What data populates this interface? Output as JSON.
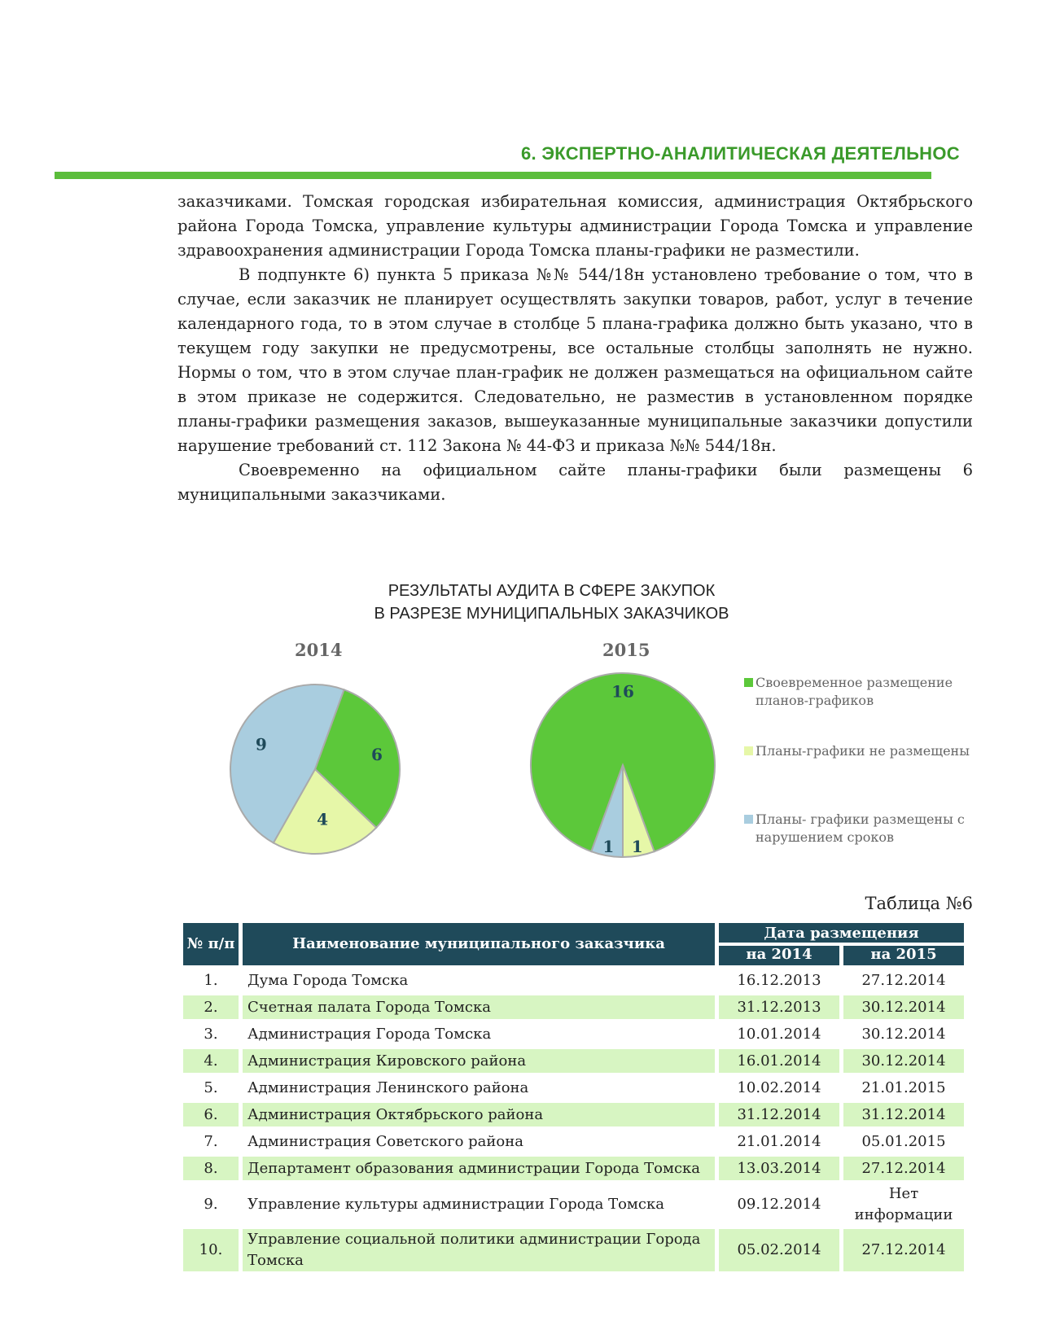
{
  "header": {
    "section_title": "6. ЭКСПЕРТНО-АНАЛИТИЧЕСКАЯ ДЕЯТЕЛЬНОС"
  },
  "body": {
    "p1": "заказчиками. Томская городская избирательная комиссия, администрация Октябрьского района Города Томска, управление культуры администрации Города Томска и управление здравоохранения администрации Города Томска планы-графики не разместили.",
    "p2": "В подпункте 6) пункта 5 приказа №№ 544/18н установлено требование о том, что в случае, если заказчик не планирует осуществлять закупки товаров, работ, услуг в течение календарного года, то в этом случае в столбце 5 плана-графика должно быть указано, что в текущем году закупки не предусмотрены, все остальные столбцы заполнять не нужно. Нормы о том, что в этом случае план-график не должен размещаться на официальном сайте в этом приказе не содержится. Следовательно, не разместив в установленном порядке планы-графики размещения заказов, вышеуказанные муниципальные заказчики допустили нарушение требований ст. 112 Закона № 44-ФЗ и приказа №№ 544/18н.",
    "p3": "Своевременно на официальном сайте планы-графики были размещены 6 муниципальными заказчиками."
  },
  "chart_data": {
    "type": "pie",
    "title_line1": "РЕЗУЛЬТАТЫ АУДИТА В СФЕРЕ ЗАКУПОК",
    "title_line2": "В РАЗРЕЗЕ МУНИЦИПАЛЬНЫХ ЗАКАЗЧИКОВ",
    "legend": [
      {
        "label": "Своевременное размещение планов-графиков",
        "color": "#5cc83a"
      },
      {
        "label": "Планы-графики не размещены",
        "color": "#e6f7a8"
      },
      {
        "label": "Планы- графики размещены с нарушением сроков",
        "color": "#a9cddf"
      }
    ],
    "legend_position": "right",
    "pies": [
      {
        "title": "2014",
        "values": [
          6,
          4,
          9
        ]
      },
      {
        "title": "2015",
        "values": [
          16,
          1,
          1
        ]
      }
    ]
  },
  "table": {
    "caption": "Таблица №6",
    "headers": {
      "num": "№ п/п",
      "name": "Наименование муниципального заказчика",
      "date": "Дата размещения",
      "y2014": "на 2014",
      "y2015": "на 2015"
    },
    "rows": [
      [
        "1.",
        "Дума Города Томска",
        "16.12.2013",
        "27.12.2014"
      ],
      [
        "2.",
        "Счетная палата Города Томска",
        "31.12.2013",
        "30.12.2014"
      ],
      [
        "3.",
        "Администрация Города Томска",
        "10.01.2014",
        "30.12.2014"
      ],
      [
        "4.",
        "Администрация Кировского района",
        "16.01.2014",
        "30.12.2014"
      ],
      [
        "5.",
        "Администрация Ленинского района",
        "10.02.2014",
        "21.01.2015"
      ],
      [
        "6.",
        "Администрация Октябрьского района",
        "31.12.2014",
        "31.12.2014"
      ],
      [
        "7.",
        "Администрация Советского района",
        "21.01.2014",
        "05.01.2015"
      ],
      [
        "8.",
        "Департамент образования администрации Города Томска",
        "13.03.2014",
        "27.12.2014"
      ],
      [
        "9.",
        "Управление культуры администрации Города Томска",
        "09.12.2014",
        "Нет информации"
      ],
      [
        "10.",
        "Управление социальной политики администрации Города Томска",
        "05.02.2014",
        "27.12.2014"
      ]
    ]
  }
}
